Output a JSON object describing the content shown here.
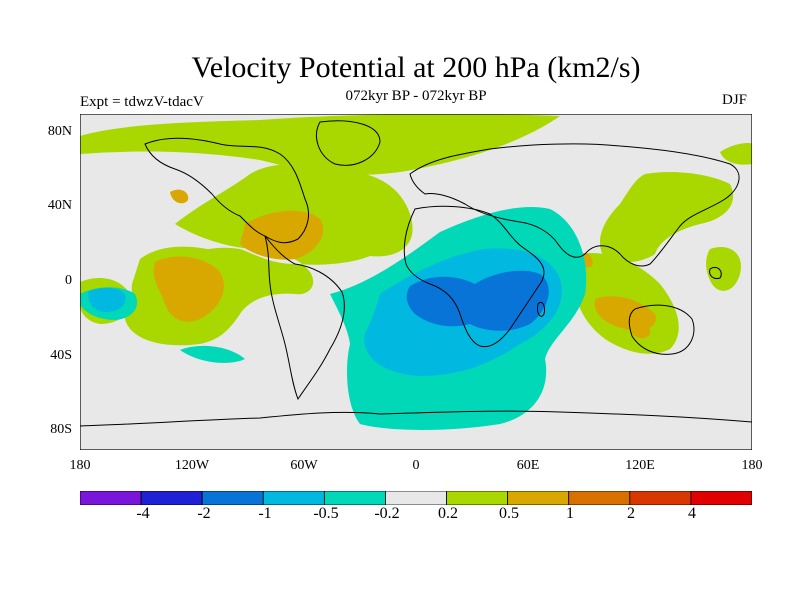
{
  "title": "Velocity Potential at 200 hPa (km2/s)",
  "subtitle": "072kyr BP - 072kyr BP",
  "expt": "Expt = tdwzV-tdacV",
  "season": "DJF",
  "axes": {
    "lat_ticks": [
      "80N",
      "40N",
      "0",
      "40S",
      "80S"
    ],
    "lon_ticks": [
      "180",
      "120W",
      "60W",
      "0",
      "60E",
      "120E",
      "180"
    ]
  },
  "colorbar": {
    "colors": [
      "#7a16dc",
      "#2020d6",
      "#0874d8",
      "#00b8e0",
      "#00d8b8",
      "#e8e8e8",
      "#a8d800",
      "#d8a800",
      "#d87000",
      "#d83800",
      "#e00000"
    ],
    "labels": [
      "-4",
      "-2",
      "-1",
      "-0.5",
      "-0.2",
      "0.2",
      "0.5",
      "1",
      "2",
      "4"
    ]
  },
  "map_colors": {
    "background": "#e8e8e8",
    "pos_weak": "#a8d800",
    "pos_mid": "#d8a800",
    "neg_weak": "#00d8b8",
    "neg_mid": "#00b8e0",
    "neg_strong": "#0874d8"
  }
}
